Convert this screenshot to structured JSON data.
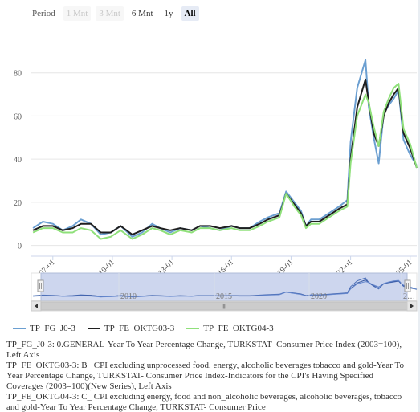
{
  "range_selector": {
    "label": "Period",
    "buttons": [
      {
        "label": "1 Mnt",
        "state": "disabled"
      },
      {
        "label": "3 Mnt",
        "state": "disabled"
      },
      {
        "label": "6 Mnt",
        "state": "normal"
      },
      {
        "label": "1y",
        "state": "normal"
      },
      {
        "label": "All",
        "state": "active"
      }
    ]
  },
  "navigator": {
    "labels": [
      "2010",
      "2015",
      "2020",
      "2…"
    ],
    "scrollbar_grip": "III"
  },
  "descriptions": [
    "TP_FG_J0-3: 0.GENERAL-Year To Year Percentage Change, TURKSTAT- Consumer Price Index (2003=100), Left Axis",
    "TP_FE_OKTG03-3: B_ CPI excluding unprocessed food, energy, alcoholic beverages tobacco and gold-Year To Year Percentage Change, TURKSTAT- Consumer Price Index-Indicators for the CPI's Having Specified Coverages (2003=100)(New Series), Left Axis",
    "TP_FE_OKTG04-3: C_ CPI excluding energy, food and non_alcoholic beverages, alcoholic beverages, tobacco and gold-Year To Year Percentage Change, TURKSTAT- Consumer Price"
  ],
  "chart_data": {
    "type": "line",
    "title": "",
    "xlabel": "",
    "ylabel": "",
    "x_tick_labels": [
      "2007-01",
      "2010-01",
      "2013-01",
      "2016-01",
      "2019-01",
      "2022-01",
      "2025-01"
    ],
    "y_tick_labels": [
      "0",
      "20",
      "40",
      "60",
      "80"
    ],
    "xlim": [
      "2005-12",
      "2025-05"
    ],
    "ylim": [
      -5,
      100
    ],
    "grid": "horizontal",
    "legend_position": "bottom-left",
    "colors": {
      "TP_FG_J0-3": "#6b9fd1",
      "TP_FE_OKTG03-3": "#1f1f1f",
      "TP_FE_OKTG04-3": "#8fe07a"
    },
    "series": [
      {
        "name": "TP_FG_J0-3",
        "points": [
          [
            "2006-01",
            8
          ],
          [
            "2006-07",
            11
          ],
          [
            "2007-01",
            10
          ],
          [
            "2007-07",
            7
          ],
          [
            "2008-01",
            9
          ],
          [
            "2008-06",
            12
          ],
          [
            "2008-12",
            10
          ],
          [
            "2009-06",
            5
          ],
          [
            "2009-12",
            6
          ],
          [
            "2010-06",
            9
          ],
          [
            "2011-01",
            4
          ],
          [
            "2011-07",
            6
          ],
          [
            "2012-01",
            10
          ],
          [
            "2012-06",
            8
          ],
          [
            "2012-12",
            6
          ],
          [
            "2013-06",
            8
          ],
          [
            "2014-01",
            7
          ],
          [
            "2014-06",
            9
          ],
          [
            "2014-12",
            8
          ],
          [
            "2015-06",
            7
          ],
          [
            "2016-01",
            9
          ],
          [
            "2016-06",
            8
          ],
          [
            "2016-12",
            8
          ],
          [
            "2017-06",
            11
          ],
          [
            "2017-11",
            13
          ],
          [
            "2018-06",
            15
          ],
          [
            "2018-10",
            25
          ],
          [
            "2019-03",
            20
          ],
          [
            "2019-07",
            16
          ],
          [
            "2019-10",
            9
          ],
          [
            "2020-01",
            12
          ],
          [
            "2020-06",
            12
          ],
          [
            "2020-12",
            15
          ],
          [
            "2021-06",
            18
          ],
          [
            "2021-11",
            21
          ],
          [
            "2022-01",
            48
          ],
          [
            "2022-05",
            73
          ],
          [
            "2022-10",
            86
          ],
          [
            "2022-12",
            64
          ],
          [
            "2023-03",
            50
          ],
          [
            "2023-06",
            38
          ],
          [
            "2023-09",
            61
          ],
          [
            "2023-12",
            65
          ],
          [
            "2024-03",
            68
          ],
          [
            "2024-06",
            72
          ],
          [
            "2024-09",
            49
          ],
          [
            "2025-01",
            42
          ],
          [
            "2025-05",
            37
          ]
        ]
      },
      {
        "name": "TP_FE_OKTG03-3",
        "points": [
          [
            "2006-01",
            7
          ],
          [
            "2006-07",
            9
          ],
          [
            "2007-01",
            9
          ],
          [
            "2007-07",
            7
          ],
          [
            "2008-01",
            8
          ],
          [
            "2008-06",
            10
          ],
          [
            "2008-12",
            10
          ],
          [
            "2009-06",
            6
          ],
          [
            "2009-12",
            6
          ],
          [
            "2010-06",
            9
          ],
          [
            "2011-01",
            5
          ],
          [
            "2011-07",
            7
          ],
          [
            "2012-01",
            9
          ],
          [
            "2012-06",
            8
          ],
          [
            "2012-12",
            7
          ],
          [
            "2013-06",
            8
          ],
          [
            "2014-01",
            7
          ],
          [
            "2014-06",
            9
          ],
          [
            "2014-12",
            9
          ],
          [
            "2015-06",
            8
          ],
          [
            "2016-01",
            9
          ],
          [
            "2016-06",
            8
          ],
          [
            "2016-12",
            8
          ],
          [
            "2017-06",
            10
          ],
          [
            "2017-11",
            12
          ],
          [
            "2018-06",
            14
          ],
          [
            "2018-10",
            24
          ],
          [
            "2019-03",
            19
          ],
          [
            "2019-07",
            15
          ],
          [
            "2019-10",
            9
          ],
          [
            "2020-01",
            11
          ],
          [
            "2020-06",
            11
          ],
          [
            "2020-12",
            14
          ],
          [
            "2021-06",
            17
          ],
          [
            "2021-11",
            19
          ],
          [
            "2022-01",
            40
          ],
          [
            "2022-05",
            64
          ],
          [
            "2022-10",
            77
          ],
          [
            "2022-12",
            66
          ],
          [
            "2023-03",
            52
          ],
          [
            "2023-06",
            46
          ],
          [
            "2023-09",
            60
          ],
          [
            "2023-12",
            66
          ],
          [
            "2024-03",
            70
          ],
          [
            "2024-06",
            73
          ],
          [
            "2024-09",
            52
          ],
          [
            "2025-01",
            45
          ],
          [
            "2025-05",
            36
          ]
        ]
      },
      {
        "name": "TP_FE_OKTG04-3",
        "points": [
          [
            "2006-01",
            6
          ],
          [
            "2006-07",
            8
          ],
          [
            "2007-01",
            8
          ],
          [
            "2007-07",
            6
          ],
          [
            "2008-01",
            6
          ],
          [
            "2008-06",
            8
          ],
          [
            "2008-12",
            7
          ],
          [
            "2009-06",
            3
          ],
          [
            "2009-12",
            4
          ],
          [
            "2010-06",
            7
          ],
          [
            "2011-01",
            3
          ],
          [
            "2011-07",
            5
          ],
          [
            "2012-01",
            8
          ],
          [
            "2012-06",
            7
          ],
          [
            "2012-12",
            5
          ],
          [
            "2013-06",
            7
          ],
          [
            "2014-01",
            6
          ],
          [
            "2014-06",
            8
          ],
          [
            "2014-12",
            8
          ],
          [
            "2015-06",
            7
          ],
          [
            "2016-01",
            8
          ],
          [
            "2016-06",
            7
          ],
          [
            "2016-12",
            7
          ],
          [
            "2017-06",
            9
          ],
          [
            "2017-11",
            11
          ],
          [
            "2018-06",
            13
          ],
          [
            "2018-10",
            24
          ],
          [
            "2019-03",
            18
          ],
          [
            "2019-07",
            14
          ],
          [
            "2019-10",
            8
          ],
          [
            "2020-01",
            10
          ],
          [
            "2020-06",
            10
          ],
          [
            "2020-12",
            13
          ],
          [
            "2021-06",
            16
          ],
          [
            "2021-11",
            18
          ],
          [
            "2022-01",
            38
          ],
          [
            "2022-05",
            60
          ],
          [
            "2022-10",
            70
          ],
          [
            "2022-12",
            66
          ],
          [
            "2023-03",
            55
          ],
          [
            "2023-06",
            46
          ],
          [
            "2023-09",
            62
          ],
          [
            "2023-12",
            68
          ],
          [
            "2024-03",
            73
          ],
          [
            "2024-06",
            75
          ],
          [
            "2024-09",
            54
          ],
          [
            "2025-01",
            47
          ],
          [
            "2025-05",
            36
          ]
        ]
      }
    ]
  }
}
